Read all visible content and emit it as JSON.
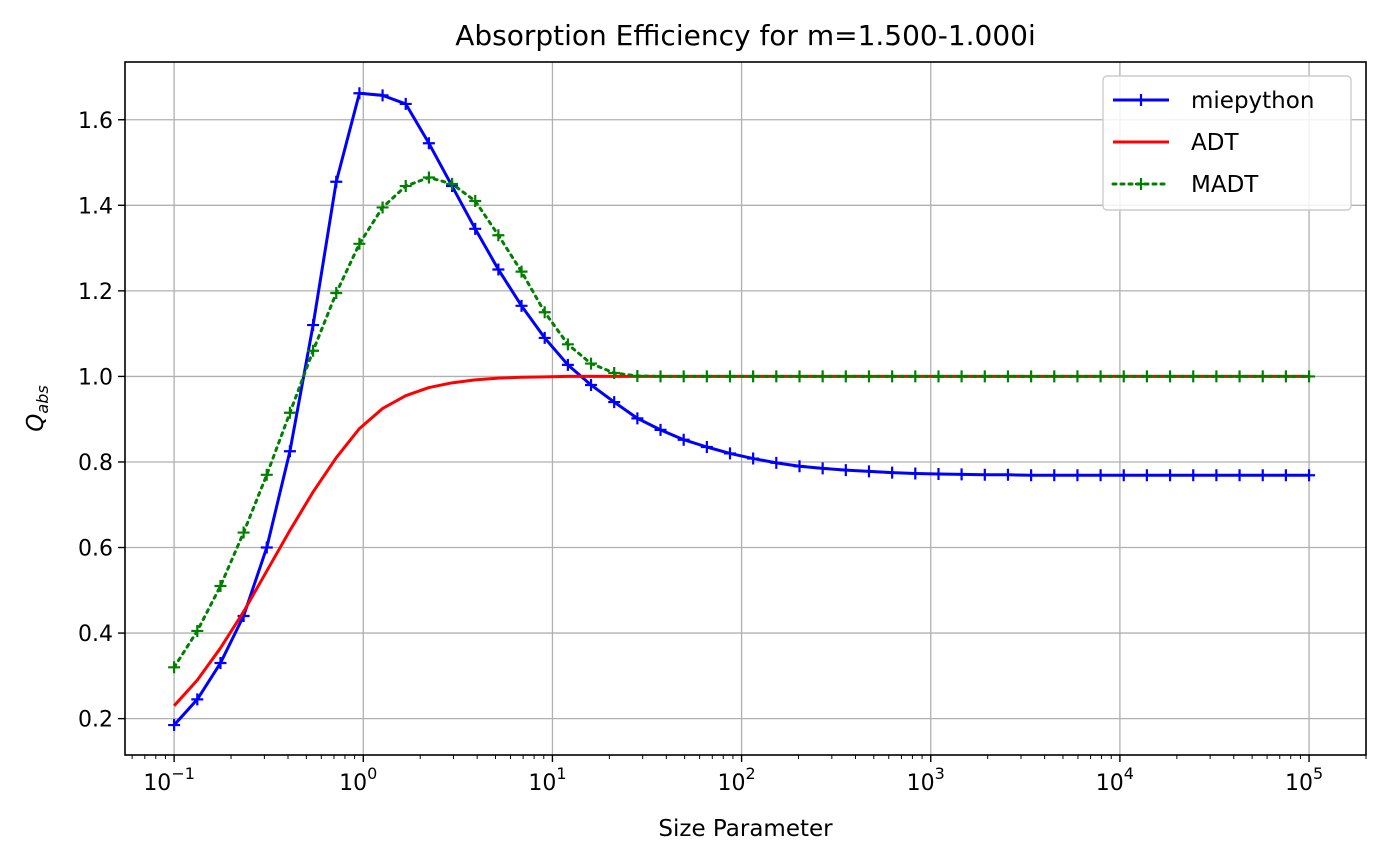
{
  "chart_data": {
    "type": "line",
    "title": "Absorption Efficiency for m=1.500-1.000i",
    "xlabel": "Size Parameter",
    "ylabel": "Q",
    "ylabel_subscript": "abs",
    "xscale": "log",
    "xlim": [
      0.055,
      200000
    ],
    "ylim": [
      0.115,
      1.735
    ],
    "grid": true,
    "legend_position": "top-right",
    "xticks": [
      {
        "base": "10",
        "exp": "−1",
        "value": 0.1
      },
      {
        "base": "10",
        "exp": "0",
        "value": 1
      },
      {
        "base": "10",
        "exp": "1",
        "value": 10
      },
      {
        "base": "10",
        "exp": "2",
        "value": 100
      },
      {
        "base": "10",
        "exp": "3",
        "value": 1000
      },
      {
        "base": "10",
        "exp": "4",
        "value": 10000
      },
      {
        "base": "10",
        "exp": "5",
        "value": 100000
      }
    ],
    "yticks": [
      "0.2",
      "0.4",
      "0.6",
      "0.8",
      "1.0",
      "1.2",
      "1.4",
      "1.6"
    ],
    "x": [
      0.1,
      0.1326,
      0.1758,
      0.233,
      0.3089,
      0.4095,
      0.5429,
      0.7197,
      0.9541,
      1.265,
      1.677,
      2.223,
      2.947,
      3.907,
      5.179,
      6.866,
      9.103,
      12.07,
      16.0,
      21.21,
      28.12,
      37.28,
      49.42,
      65.52,
      86.85,
      115.1,
      152.6,
      202.4,
      268.3,
      355.7,
      471.5,
      625.1,
      828.6,
      1099,
      1456,
      1931,
      2560,
      3393,
      4498,
      5964,
      7906,
      10480,
      13890,
      18420,
      24420,
      32370,
      42920,
      56900,
      75430,
      100000
    ],
    "series": [
      {
        "name": "miepython",
        "color": "#0000ff",
        "line_style": "solid",
        "marker": "+",
        "values": [
          0.185,
          0.245,
          0.33,
          0.44,
          0.6,
          0.825,
          1.12,
          1.455,
          1.662,
          1.657,
          1.637,
          1.545,
          1.445,
          1.345,
          1.25,
          1.165,
          1.09,
          1.027,
          0.98,
          0.94,
          0.902,
          0.875,
          0.852,
          0.835,
          0.82,
          0.808,
          0.798,
          0.79,
          0.785,
          0.781,
          0.778,
          0.775,
          0.773,
          0.772,
          0.771,
          0.77,
          0.77,
          0.769,
          0.769,
          0.769,
          0.769,
          0.769,
          0.769,
          0.769,
          0.769,
          0.769,
          0.769,
          0.769,
          0.769,
          0.769
        ]
      },
      {
        "name": "ADT",
        "color": "#ff0000",
        "line_style": "solid",
        "marker": "none",
        "values": [
          0.23,
          0.29,
          0.365,
          0.45,
          0.545,
          0.64,
          0.73,
          0.81,
          0.878,
          0.925,
          0.955,
          0.974,
          0.985,
          0.992,
          0.996,
          0.998,
          0.999,
          1.0,
          1.0,
          1.0,
          1.0,
          1.0,
          1.0,
          1.0,
          1.0,
          1.0,
          1.0,
          1.0,
          1.0,
          1.0,
          1.0,
          1.0,
          1.0,
          1.0,
          1.0,
          1.0,
          1.0,
          1.0,
          1.0,
          1.0,
          1.0,
          1.0,
          1.0,
          1.0,
          1.0,
          1.0,
          1.0,
          1.0,
          1.0,
          1.0
        ]
      },
      {
        "name": "MADT",
        "color": "#008000",
        "line_style": "dotted",
        "marker": "+",
        "values": [
          0.32,
          0.405,
          0.51,
          0.635,
          0.77,
          0.915,
          1.06,
          1.195,
          1.31,
          1.395,
          1.445,
          1.465,
          1.45,
          1.41,
          1.33,
          1.245,
          1.15,
          1.075,
          1.03,
          1.008,
          1.001,
          1.0,
          1.0,
          1.0,
          1.0,
          1.0,
          1.0,
          1.0,
          1.0,
          1.0,
          1.0,
          1.0,
          1.0,
          1.0,
          1.0,
          1.0,
          1.0,
          1.0,
          1.0,
          1.0,
          1.0,
          1.0,
          1.0,
          1.0,
          1.0,
          1.0,
          1.0,
          1.0,
          1.0,
          1.0
        ]
      }
    ]
  }
}
